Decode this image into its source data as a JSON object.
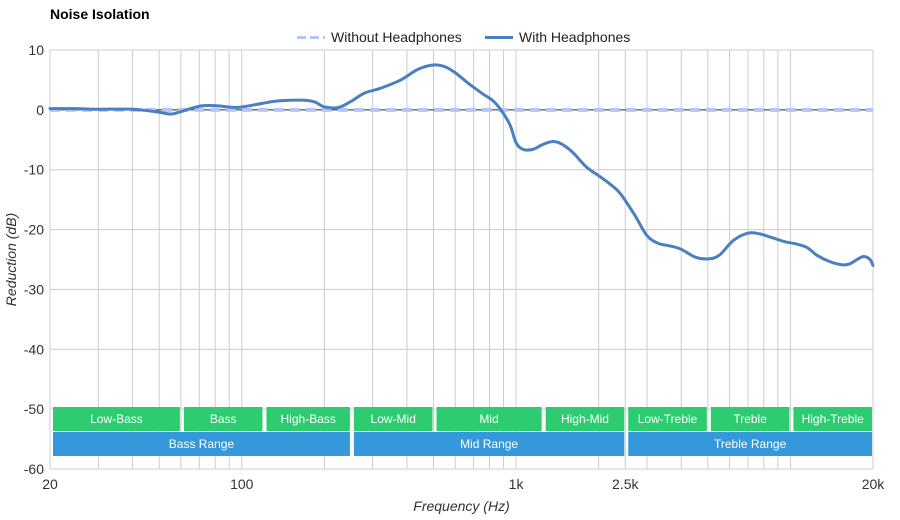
{
  "chart_data": {
    "type": "line",
    "title": "Noise Isolation",
    "xlabel": "Frequency (Hz)",
    "ylabel": "Reduction (dB)",
    "xscale": "log",
    "xlim": [
      20,
      20000
    ],
    "ylim": [
      -60,
      10
    ],
    "x_ticks": [
      {
        "value": 20,
        "label": "20"
      },
      {
        "value": 100,
        "label": "100"
      },
      {
        "value": 1000,
        "label": "1k"
      },
      {
        "value": 2500,
        "label": "2.5k"
      },
      {
        "value": 20000,
        "label": "20k"
      }
    ],
    "y_ticks": [
      10,
      0,
      -10,
      -20,
      -30,
      -40,
      -50,
      -60
    ],
    "grid": true,
    "legend_position": "top-center",
    "series": [
      {
        "name": "Without Headphones",
        "style": "dashed",
        "color": "#b3c6f5",
        "points": [
          [
            20,
            0
          ],
          [
            20000,
            0
          ]
        ]
      },
      {
        "name": "With Headphones",
        "style": "solid",
        "color": "#4a7fc1",
        "points": [
          [
            20,
            0.2
          ],
          [
            25,
            0.2
          ],
          [
            30,
            0.1
          ],
          [
            40,
            0.1
          ],
          [
            50,
            -0.4
          ],
          [
            55,
            -0.7
          ],
          [
            60,
            -0.3
          ],
          [
            70,
            0.6
          ],
          [
            80,
            0.7
          ],
          [
            95,
            0.4
          ],
          [
            110,
            0.8
          ],
          [
            130,
            1.4
          ],
          [
            150,
            1.6
          ],
          [
            170,
            1.6
          ],
          [
            185,
            1.3
          ],
          [
            200,
            0.5
          ],
          [
            225,
            0.4
          ],
          [
            250,
            1.4
          ],
          [
            280,
            2.8
          ],
          [
            320,
            3.6
          ],
          [
            380,
            5.0
          ],
          [
            440,
            6.8
          ],
          [
            500,
            7.5
          ],
          [
            550,
            7.2
          ],
          [
            600,
            6.2
          ],
          [
            680,
            4.2
          ],
          [
            760,
            2.6
          ],
          [
            820,
            1.6
          ],
          [
            880,
            0.0
          ],
          [
            950,
            -2.5
          ],
          [
            1000,
            -5.5
          ],
          [
            1060,
            -6.6
          ],
          [
            1150,
            -6.6
          ],
          [
            1250,
            -5.8
          ],
          [
            1350,
            -5.3
          ],
          [
            1450,
            -5.6
          ],
          [
            1600,
            -7.0
          ],
          [
            1800,
            -9.5
          ],
          [
            2000,
            -11.0
          ],
          [
            2200,
            -12.4
          ],
          [
            2400,
            -14.0
          ],
          [
            2700,
            -17.5
          ],
          [
            3000,
            -21.0
          ],
          [
            3300,
            -22.3
          ],
          [
            3700,
            -22.8
          ],
          [
            4000,
            -23.3
          ],
          [
            4500,
            -24.6
          ],
          [
            5000,
            -24.9
          ],
          [
            5500,
            -24.3
          ],
          [
            6200,
            -21.8
          ],
          [
            7000,
            -20.6
          ],
          [
            7700,
            -20.7
          ],
          [
            8500,
            -21.3
          ],
          [
            9500,
            -22.0
          ],
          [
            10500,
            -22.4
          ],
          [
            11500,
            -23.0
          ],
          [
            12500,
            -24.3
          ],
          [
            14000,
            -25.4
          ],
          [
            15500,
            -25.9
          ],
          [
            16500,
            -25.7
          ],
          [
            17500,
            -25.0
          ],
          [
            18500,
            -24.5
          ],
          [
            19500,
            -25.0
          ],
          [
            20000,
            -26.0
          ]
        ]
      }
    ],
    "bands": [
      {
        "label": "Low-Bass",
        "from": 20,
        "to": 60,
        "row": "range"
      },
      {
        "label": "Bass",
        "from": 60,
        "to": 120,
        "row": "range"
      },
      {
        "label": "High-Bass",
        "from": 120,
        "to": 250,
        "row": "range"
      },
      {
        "label": "Low-Mid",
        "from": 250,
        "to": 500,
        "row": "range"
      },
      {
        "label": "Mid",
        "from": 500,
        "to": 1250,
        "row": "range"
      },
      {
        "label": "High-Mid",
        "from": 1250,
        "to": 2500,
        "row": "range"
      },
      {
        "label": "Low-Treble",
        "from": 2500,
        "to": 5000,
        "row": "range"
      },
      {
        "label": "Treble",
        "from": 5000,
        "to": 10000,
        "row": "range"
      },
      {
        "label": "High-Treble",
        "from": 10000,
        "to": 20000,
        "row": "range"
      },
      {
        "label": "Bass Range",
        "from": 20,
        "to": 250,
        "row": "group"
      },
      {
        "label": "Mid Range",
        "from": 250,
        "to": 2500,
        "row": "group"
      },
      {
        "label": "Treble Range",
        "from": 2500,
        "to": 20000,
        "row": "group"
      }
    ],
    "band_colors": {
      "range": "#2ecc71",
      "group": "#3498db"
    },
    "colors": {
      "grid": "#cccccc",
      "axis_text": "#333333",
      "zero_line": "#333333"
    }
  }
}
